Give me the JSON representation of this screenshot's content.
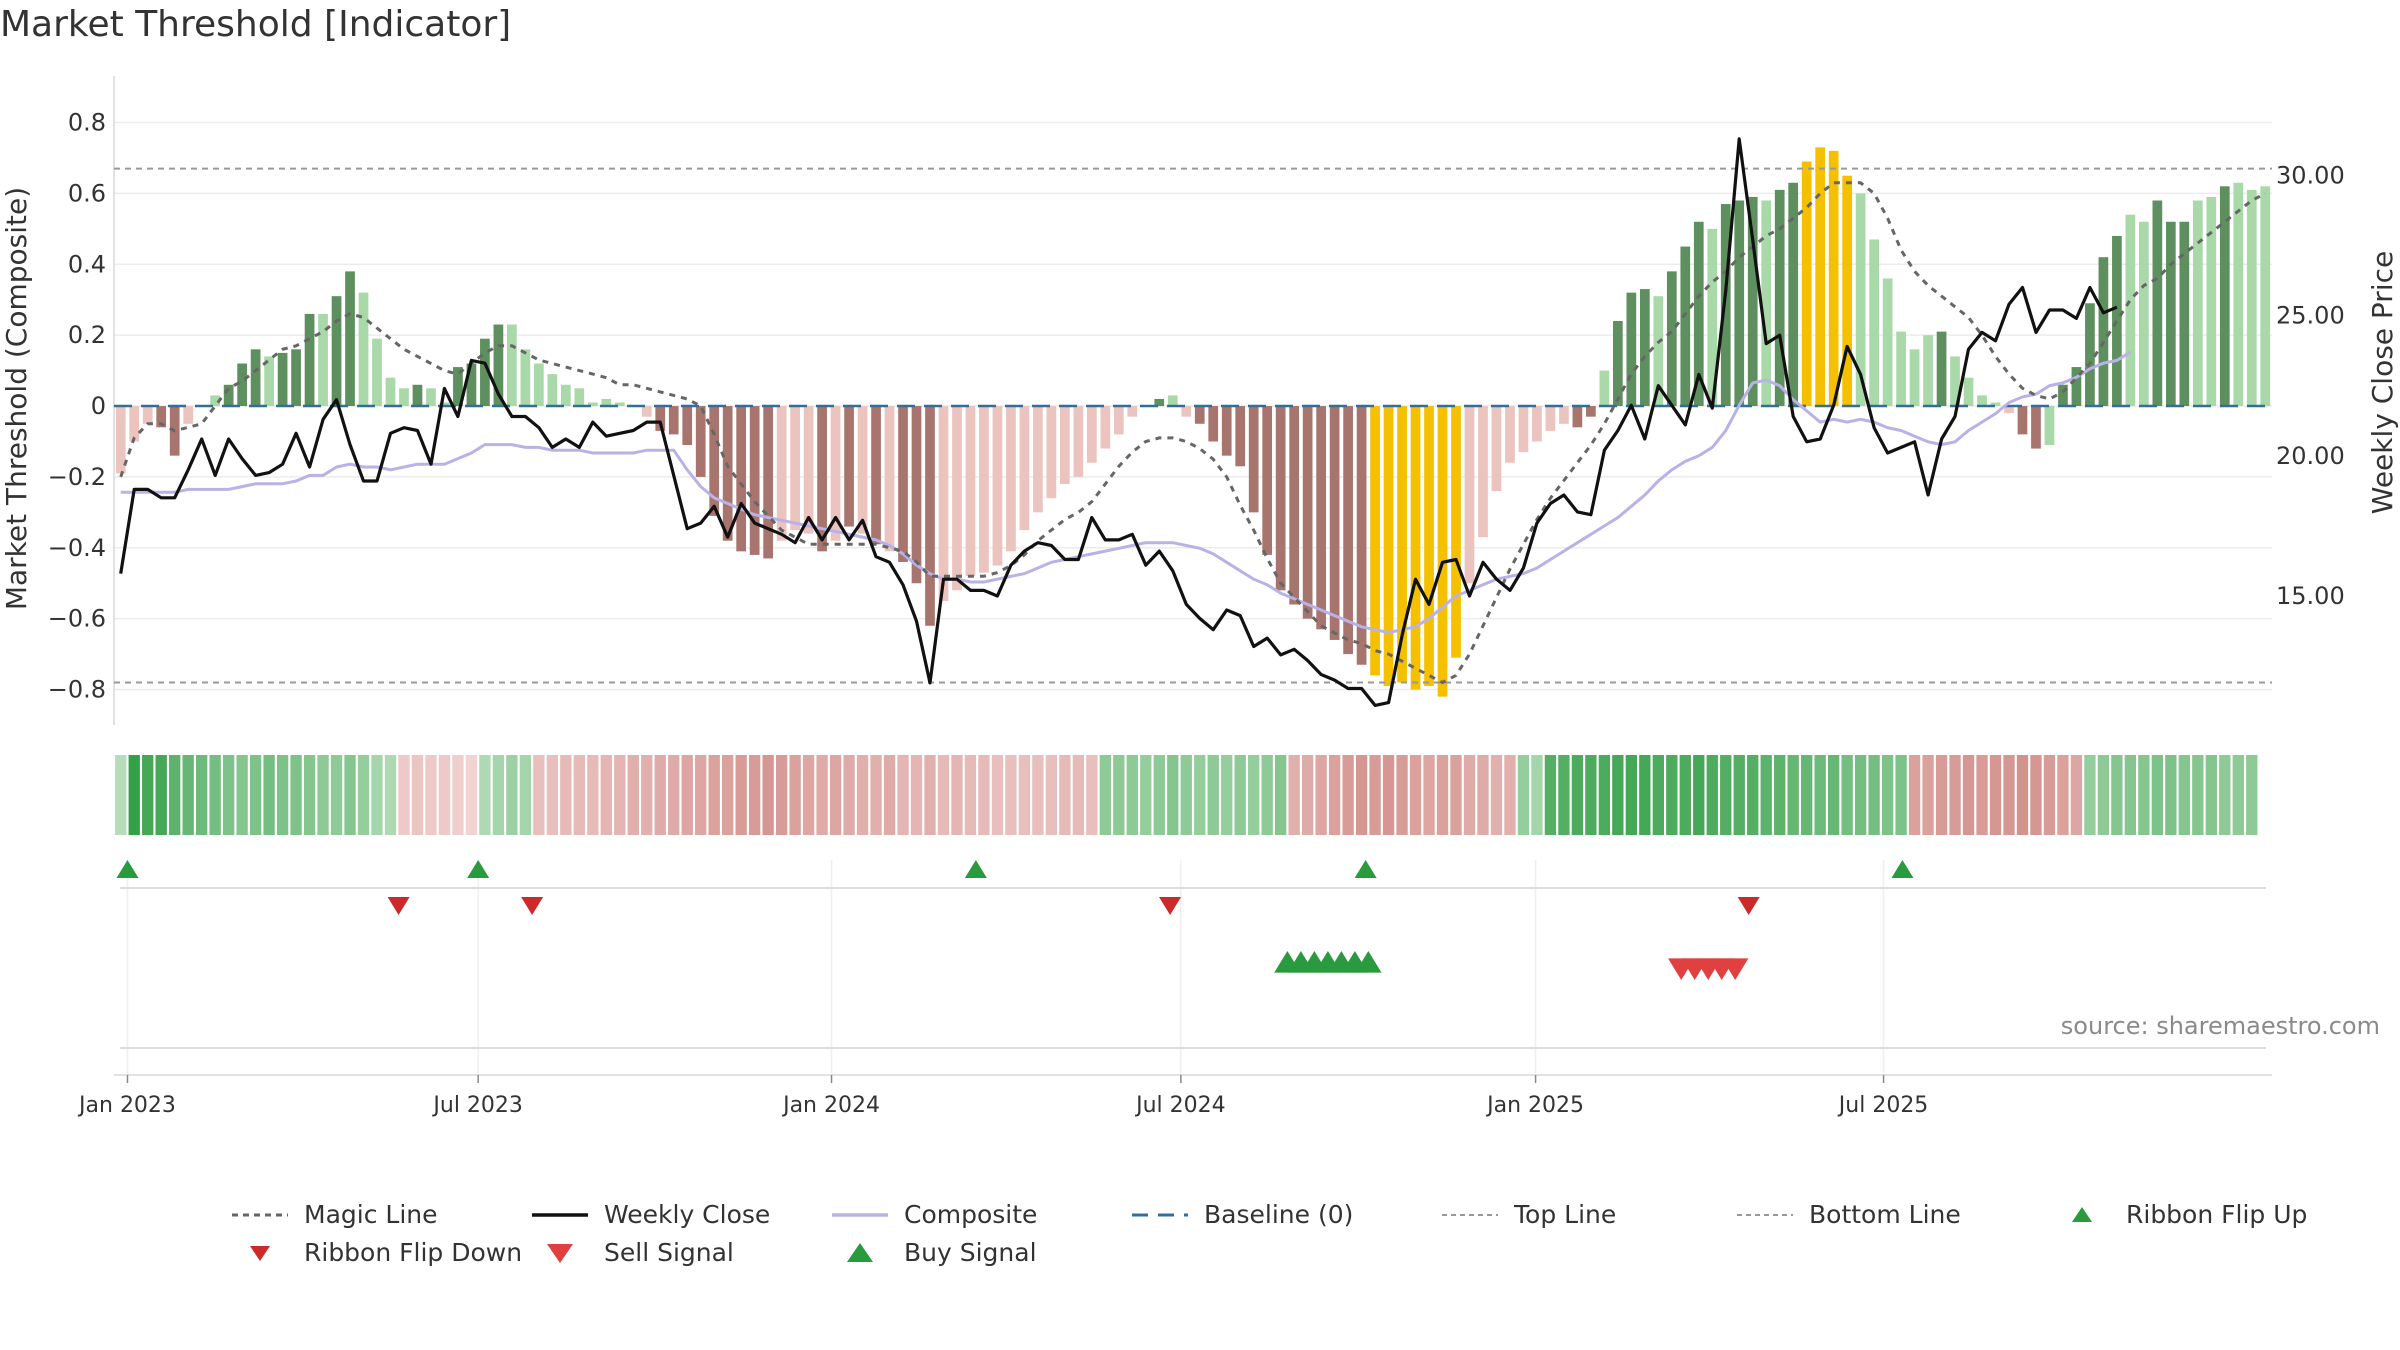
{
  "title": "Market Threshold [Indicator]",
  "source": "source: sharemaestro.com",
  "colors": {
    "pos_dark": "#5e8f5e",
    "pos_light": "#a9d8a9",
    "neg_dark": "#a8746e",
    "neg_light": "#ebc3bf",
    "extreme": "#f5c000",
    "close": "#111111",
    "composite": "#b8b2e6",
    "magic": "#666666",
    "baseline": "#2f6f9f",
    "ref": "#999999",
    "flip_up": "#2a9a3e",
    "flip_down": "#cc2a2a",
    "buy": "#2a9a3e",
    "sell": "#e04040"
  },
  "chart_data": {
    "type": "bar",
    "ylabel": "Market Threshold (Composite)",
    "y2label": "Weekly Close Price",
    "ylim": [
      -0.9,
      0.92
    ],
    "y2lim": [
      10.4,
      33.4
    ],
    "yticks": [
      {
        "v": 0.8,
        "t": "0.8"
      },
      {
        "v": 0.6,
        "t": "0.6"
      },
      {
        "v": 0.4,
        "t": "0.4"
      },
      {
        "v": 0.2,
        "t": "0.2"
      },
      {
        "v": 0,
        "t": "0"
      },
      {
        "v": -0.2,
        "t": "−0.2"
      },
      {
        "v": -0.4,
        "t": "−0.4"
      },
      {
        "v": -0.6,
        "t": "−0.6"
      },
      {
        "v": -0.8,
        "t": "−0.8"
      }
    ],
    "y2ticks": [
      {
        "v": 30,
        "t": "30.00"
      },
      {
        "v": 25,
        "t": "25.00"
      },
      {
        "v": 20,
        "t": "20.00"
      },
      {
        "v": 15,
        "t": "15.00"
      }
    ],
    "xticks": [
      {
        "w": 0.5,
        "t": "Jan 2023"
      },
      {
        "w": 26.5,
        "t": "Jul 2023"
      },
      {
        "w": 52.7,
        "t": "Jan 2024"
      },
      {
        "w": 78.6,
        "t": "Jul 2024"
      },
      {
        "w": 104.9,
        "t": "Jan 2025"
      },
      {
        "w": 130.7,
        "t": "Jul 2025"
      }
    ],
    "top_line": 0.67,
    "bottom_line": -0.78,
    "composite_bars": [
      -0.19,
      -0.1,
      -0.05,
      -0.06,
      -0.14,
      -0.05,
      0,
      0.03,
      0.06,
      0.12,
      0.16,
      0.14,
      0.15,
      0.16,
      0.26,
      0.26,
      0.31,
      0.38,
      0.32,
      0.19,
      0.08,
      0.05,
      0.06,
      0.05,
      0.01,
      0.11,
      0.12,
      0.19,
      0.23,
      0.23,
      0.16,
      0.12,
      0.09,
      0.06,
      0.05,
      0.01,
      0.02,
      0.01,
      0,
      -0.03,
      -0.07,
      -0.08,
      -0.11,
      -0.2,
      -0.31,
      -0.38,
      -0.41,
      -0.42,
      -0.43,
      -0.38,
      -0.35,
      -0.36,
      -0.41,
      -0.38,
      -0.34,
      -0.36,
      -0.39,
      -0.41,
      -0.44,
      -0.5,
      -0.62,
      -0.55,
      -0.52,
      -0.48,
      -0.47,
      -0.45,
      -0.41,
      -0.35,
      -0.3,
      -0.26,
      -0.22,
      -0.2,
      -0.16,
      -0.12,
      -0.08,
      -0.03,
      0,
      0.02,
      0.03,
      -0.03,
      -0.05,
      -0.1,
      -0.14,
      -0.17,
      -0.3,
      -0.42,
      -0.52,
      -0.56,
      -0.6,
      -0.63,
      -0.66,
      -0.7,
      -0.73,
      -0.76,
      -0.79,
      -0.78,
      -0.8,
      -0.79,
      -0.82,
      -0.71,
      -0.5,
      -0.37,
      -0.24,
      -0.16,
      -0.13,
      -0.1,
      -0.07,
      -0.05,
      -0.06,
      -0.03,
      0.1,
      0.24,
      0.32,
      0.33,
      0.31,
      0.38,
      0.45,
      0.52,
      0.5,
      0.57,
      0.58,
      0.59,
      0.58,
      0.61,
      0.63,
      0.69,
      0.73,
      0.72,
      0.65,
      0.6,
      0.47,
      0.36,
      0.21,
      0.16,
      0.2,
      0.21,
      0.14,
      0.08,
      0.03,
      0.01,
      -0.02,
      -0.08,
      -0.12,
      -0.11,
      0.06,
      0.11,
      0.29,
      0.42,
      0.48,
      0.54,
      0.52,
      0.58,
      0.52,
      0.52,
      0.58,
      0.59,
      0.62,
      0.63,
      0.61,
      0.62
    ],
    "bar_tones": [
      "neg_light",
      "neg_light",
      "neg_light",
      "neg_dark",
      "neg_dark",
      "neg_light",
      "pos_light",
      "pos_light",
      "pos_dark",
      "pos_dark",
      "pos_dark",
      "pos_light",
      "pos_dark",
      "pos_dark",
      "pos_dark",
      "pos_light",
      "pos_dark",
      "pos_dark",
      "pos_light",
      "pos_light",
      "pos_light",
      "pos_light",
      "pos_dark",
      "pos_light",
      "pos_light",
      "pos_dark",
      "pos_dark",
      "pos_dark",
      "pos_dark",
      "pos_light",
      "pos_light",
      "pos_light",
      "pos_light",
      "pos_light",
      "pos_light",
      "pos_light",
      "pos_light",
      "pos_light",
      "neg_light",
      "neg_light",
      "neg_dark",
      "neg_dark",
      "neg_dark",
      "neg_dark",
      "neg_dark",
      "neg_dark",
      "neg_dark",
      "neg_dark",
      "neg_dark",
      "neg_light",
      "neg_light",
      "neg_light",
      "neg_dark",
      "neg_light",
      "neg_dark",
      "neg_light",
      "neg_dark",
      "neg_light",
      "neg_dark",
      "neg_dark",
      "neg_dark",
      "neg_light",
      "neg_light",
      "neg_light",
      "neg_light",
      "neg_light",
      "neg_light",
      "neg_light",
      "neg_light",
      "neg_light",
      "neg_light",
      "neg_light",
      "neg_light",
      "neg_light",
      "neg_light",
      "neg_light",
      "pos_light",
      "pos_dark",
      "pos_light",
      "neg_light",
      "neg_dark",
      "neg_dark",
      "neg_dark",
      "neg_dark",
      "neg_dark",
      "neg_dark",
      "neg_dark",
      "neg_dark",
      "neg_dark",
      "neg_dark",
      "neg_dark",
      "neg_dark",
      "neg_dark",
      "extreme",
      "extreme",
      "extreme",
      "extreme",
      "extreme",
      "extreme",
      "extreme",
      "neg_light",
      "neg_light",
      "neg_light",
      "neg_light",
      "neg_light",
      "neg_light",
      "neg_light",
      "neg_light",
      "neg_dark",
      "neg_dark",
      "pos_light",
      "pos_dark",
      "pos_dark",
      "pos_dark",
      "pos_light",
      "pos_dark",
      "pos_dark",
      "pos_dark",
      "pos_light",
      "pos_dark",
      "pos_dark",
      "pos_dark",
      "pos_light",
      "pos_dark",
      "pos_dark",
      "extreme",
      "extreme",
      "extreme",
      "extreme",
      "pos_light",
      "pos_light",
      "pos_light",
      "pos_light",
      "pos_light",
      "pos_light",
      "pos_dark",
      "pos_light",
      "pos_light",
      "pos_light",
      "pos_light",
      "neg_light",
      "neg_dark",
      "neg_dark",
      "pos_light",
      "pos_dark",
      "pos_dark",
      "pos_dark",
      "pos_dark",
      "pos_dark",
      "pos_light",
      "pos_light",
      "pos_dark",
      "pos_dark",
      "pos_dark",
      "pos_light",
      "pos_light",
      "pos_dark"
    ],
    "magic_line": [
      -0.2,
      -0.09,
      -0.05,
      -0.05,
      -0.07,
      -0.06,
      -0.05,
      0,
      0.05,
      0.07,
      0.1,
      0.13,
      0.16,
      0.17,
      0.19,
      0.21,
      0.24,
      0.26,
      0.25,
      0.22,
      0.19,
      0.16,
      0.14,
      0.12,
      0.1,
      0.09,
      0.12,
      0.15,
      0.17,
      0.17,
      0.15,
      0.13,
      0.12,
      0.11,
      0.1,
      0.09,
      0.08,
      0.06,
      0.06,
      0.05,
      0.04,
      0.03,
      0.02,
      0,
      -0.08,
      -0.17,
      -0.22,
      -0.27,
      -0.31,
      -0.35,
      -0.37,
      -0.39,
      -0.39,
      -0.39,
      -0.39,
      -0.39,
      -0.39,
      -0.4,
      -0.41,
      -0.44,
      -0.48,
      -0.48,
      -0.48,
      -0.48,
      -0.48,
      -0.47,
      -0.45,
      -0.42,
      -0.38,
      -0.35,
      -0.32,
      -0.3,
      -0.27,
      -0.22,
      -0.17,
      -0.13,
      -0.1,
      -0.09,
      -0.09,
      -0.1,
      -0.12,
      -0.15,
      -0.2,
      -0.28,
      -0.35,
      -0.43,
      -0.5,
      -0.54,
      -0.58,
      -0.62,
      -0.64,
      -0.66,
      -0.67,
      -0.69,
      -0.7,
      -0.72,
      -0.74,
      -0.76,
      -0.78,
      -0.76,
      -0.7,
      -0.62,
      -0.54,
      -0.46,
      -0.39,
      -0.32,
      -0.26,
      -0.21,
      -0.16,
      -0.11,
      -0.05,
      0.02,
      0.09,
      0.14,
      0.18,
      0.21,
      0.26,
      0.31,
      0.35,
      0.38,
      0.42,
      0.45,
      0.48,
      0.5,
      0.53,
      0.56,
      0.6,
      0.63,
      0.63,
      0.63,
      0.6,
      0.53,
      0.44,
      0.38,
      0.34,
      0.31,
      0.28,
      0.25,
      0.2,
      0.14,
      0.09,
      0.05,
      0.03,
      0.02,
      0.04,
      0.08,
      0.12,
      0.18,
      0.24,
      0.3,
      0.34,
      0.36,
      0.4,
      0.43,
      0.46,
      0.49,
      0.52,
      0.55,
      0.58,
      0.6
    ],
    "weekly_close": [
      15.8,
      18.8,
      18.8,
      18.5,
      18.5,
      19.5,
      20.6,
      19.3,
      20.6,
      19.9,
      19.3,
      19.4,
      19.7,
      20.8,
      19.6,
      21.3,
      22.0,
      20.4,
      19.1,
      19.1,
      20.8,
      21.0,
      20.9,
      19.7,
      22.4,
      21.4,
      23.4,
      23.3,
      22.2,
      21.4,
      21.4,
      21.0,
      20.3,
      20.6,
      20.3,
      21.2,
      20.7,
      20.8,
      20.9,
      21.2,
      21.2,
      19.3,
      17.4,
      17.6,
      18.2,
      17.1,
      18.3,
      17.6,
      17.4,
      17.2,
      16.9,
      17.8,
      17.0,
      17.8,
      17.0,
      17.7,
      16.4,
      16.2,
      15.4,
      14.1,
      11.9,
      15.6,
      15.6,
      15.2,
      15.2,
      15.0,
      16.1,
      16.6,
      16.9,
      16.8,
      16.3,
      16.3,
      17.8,
      17.0,
      17.0,
      17.2,
      16.1,
      16.6,
      15.9,
      14.7,
      14.2,
      13.8,
      14.5,
      14.3,
      13.2,
      13.5,
      12.9,
      13.1,
      12.7,
      12.2,
      12.0,
      11.7,
      11.7,
      11.1,
      11.2,
      13.6,
      15.6,
      14.7,
      16.2,
      16.3,
      15.0,
      16.2,
      15.6,
      15.2,
      16.0,
      17.6,
      18.3,
      18.6,
      18.0,
      17.9,
      20.2,
      20.9,
      21.8,
      20.6,
      22.5,
      21.8,
      21.1,
      22.9,
      21.7,
      25.9,
      31.3,
      27.7,
      24.0,
      24.3,
      21.4,
      20.5,
      20.6,
      21.8,
      23.9,
      22.9,
      21.0,
      20.1,
      20.3,
      20.5,
      18.6,
      20.6,
      21.4,
      23.8,
      24.4,
      24.1,
      25.4,
      26.0,
      24.4,
      25.2,
      25.2,
      24.9,
      26.0,
      25.1,
      25.3
    ],
    "composite_line": [
      18.7,
      18.7,
      18.7,
      18.7,
      18.7,
      18.8,
      18.8,
      18.8,
      18.8,
      18.9,
      19.0,
      19.0,
      19.0,
      19.1,
      19.3,
      19.3,
      19.6,
      19.7,
      19.6,
      19.6,
      19.5,
      19.6,
      19.7,
      19.7,
      19.7,
      19.9,
      20.1,
      20.4,
      20.4,
      20.4,
      20.3,
      20.3,
      20.2,
      20.2,
      20.2,
      20.1,
      20.1,
      20.1,
      20.1,
      20.2,
      20.2,
      20.2,
      19.5,
      18.9,
      18.5,
      18.3,
      18.1,
      17.9,
      17.8,
      17.7,
      17.6,
      17.5,
      17.4,
      17.3,
      17.2,
      17.1,
      17.0,
      16.8,
      16.5,
      16.1,
      15.8,
      15.6,
      15.6,
      15.5,
      15.5,
      15.6,
      15.7,
      15.8,
      16.0,
      16.2,
      16.3,
      16.4,
      16.5,
      16.6,
      16.7,
      16.8,
      16.9,
      16.9,
      16.9,
      16.8,
      16.7,
      16.5,
      16.2,
      15.9,
      15.6,
      15.4,
      15.1,
      14.9,
      14.7,
      14.5,
      14.3,
      14.1,
      13.9,
      13.8,
      13.7,
      13.8,
      13.9,
      14.2,
      14.6,
      15.0,
      15.2,
      15.4,
      15.6,
      15.7,
      15.8,
      16.0,
      16.3,
      16.6,
      16.9,
      17.2,
      17.5,
      17.8,
      18.2,
      18.6,
      19.1,
      19.5,
      19.8,
      20.0,
      20.3,
      20.9,
      21.8,
      22.6,
      22.7,
      22.5,
      22.0,
      21.6,
      21.2,
      21.3,
      21.2,
      21.3,
      21.2,
      21.0,
      20.9,
      20.7,
      20.5,
      20.4,
      20.5,
      20.9,
      21.2,
      21.5,
      21.9,
      22.1,
      22.2,
      22.5,
      22.6,
      22.8,
      23.1,
      23.3,
      23.4,
      23.7
    ],
    "ribbon": [
      0.2,
      1.0,
      0.9,
      0.9,
      0.75,
      0.7,
      0.65,
      0.6,
      0.55,
      0.5,
      0.55,
      0.6,
      0.55,
      0.55,
      0.5,
      0.45,
      0.45,
      0.5,
      0.4,
      0.3,
      0.25,
      -0.2,
      -0.25,
      -0.2,
      -0.2,
      -0.15,
      -0.1,
      0.25,
      0.3,
      0.35,
      0.3,
      -0.3,
      -0.3,
      -0.35,
      -0.35,
      -0.35,
      -0.4,
      -0.4,
      -0.45,
      -0.45,
      -0.5,
      -0.5,
      -0.55,
      -0.55,
      -0.6,
      -0.6,
      -0.65,
      -0.65,
      -0.7,
      -0.65,
      -0.6,
      -0.55,
      -0.5,
      -0.55,
      -0.5,
      -0.45,
      -0.45,
      -0.5,
      -0.4,
      -0.4,
      -0.45,
      -0.35,
      -0.4,
      -0.35,
      -0.35,
      -0.3,
      -0.3,
      -0.3,
      -0.3,
      -0.3,
      -0.35,
      -0.35,
      -0.3,
      0.45,
      0.45,
      0.45,
      0.4,
      0.45,
      0.5,
      0.45,
      0.4,
      0.45,
      0.4,
      0.45,
      0.4,
      0.45,
      0.5,
      -0.45,
      -0.5,
      -0.55,
      -0.6,
      -0.65,
      -0.7,
      -0.65,
      -0.7,
      -0.65,
      -0.6,
      -0.55,
      -0.6,
      -0.6,
      -0.5,
      -0.5,
      -0.45,
      -0.45,
      0.4,
      0.3,
      0.8,
      0.8,
      0.85,
      0.85,
      0.85,
      0.9,
      0.9,
      0.9,
      0.85,
      0.85,
      0.85,
      0.9,
      0.85,
      0.8,
      0.8,
      0.8,
      0.75,
      0.75,
      0.7,
      0.7,
      0.65,
      0.7,
      0.6,
      0.6,
      0.6,
      0.55,
      0.55,
      -0.6,
      -0.6,
      -0.65,
      -0.65,
      -0.7,
      -0.65,
      -0.7,
      -0.7,
      -0.75,
      -0.7,
      -0.65,
      -0.6,
      -0.55,
      0.4,
      0.45,
      0.5,
      0.5,
      0.5,
      0.55,
      0.55,
      0.5,
      0.5,
      0.5,
      0.45,
      0.45,
      0.45
    ],
    "ribbon_flip_up": [
      0.5,
      26.5,
      63.4,
      92.3,
      132.1
    ],
    "ribbon_flip_down": [
      20.6,
      30.5,
      77.8,
      120.7
    ],
    "buy_signals": [
      86.5,
      87.5,
      88.5,
      89.5,
      90.5,
      91.5,
      92.5
    ],
    "sell_signals": [
      115.7,
      116.7,
      117.7,
      118.7,
      119.7
    ],
    "legend": [
      {
        "label": "Magic Line",
        "kind": "magic"
      },
      {
        "label": "Weekly Close",
        "kind": "close"
      },
      {
        "label": "Composite",
        "kind": "composite"
      },
      {
        "label": "Baseline (0)",
        "kind": "baseline"
      },
      {
        "label": "Top Line",
        "kind": "ref"
      },
      {
        "label": "Bottom Line",
        "kind": "ref"
      },
      {
        "label": "Ribbon Flip Up",
        "kind": "flip_up"
      },
      {
        "label": "Ribbon Flip Down",
        "kind": "flip_down"
      },
      {
        "label": "Sell Signal",
        "kind": "sell"
      },
      {
        "label": "Buy Signal",
        "kind": "buy"
      }
    ]
  }
}
